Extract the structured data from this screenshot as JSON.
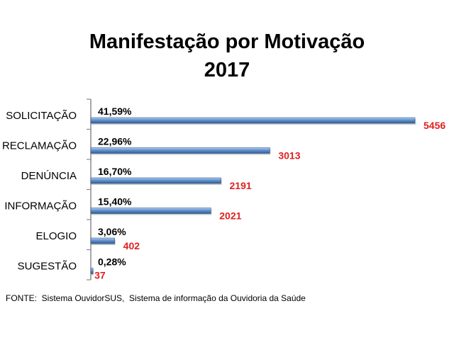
{
  "chart_data": {
    "type": "bar",
    "orientation": "horizontal",
    "title": "Manifestação por Motivação",
    "subtitle": "2017",
    "categories": [
      "SOLICITAÇÃO",
      "RECLAMAÇÃO",
      "DENÚNCIA",
      "INFORMAÇÃO",
      "ELOGIO",
      "SUGESTÃO"
    ],
    "values": [
      5456,
      3013,
      2191,
      2021,
      402,
      37
    ],
    "percent_labels": [
      "41,59%",
      "22,96%",
      "16,70%",
      "15,40%",
      "3,06%",
      "0,28%"
    ],
    "value_labels": [
      "5456",
      "3013",
      "2191",
      "2021",
      "402",
      "37"
    ],
    "xlim": [
      0,
      5456
    ],
    "grid": false,
    "legend": "none"
  },
  "source_text": "FONTE:  Sistema OuvidorSUS,  Sistema de informação da Ouvidoria da Saúde",
  "colors": {
    "bar": "#4f81bd",
    "bar_light": "#9cbfe6",
    "bar_dark": "#2e5c95",
    "value_text": "#e02020",
    "axis": "#8a8a8a"
  }
}
